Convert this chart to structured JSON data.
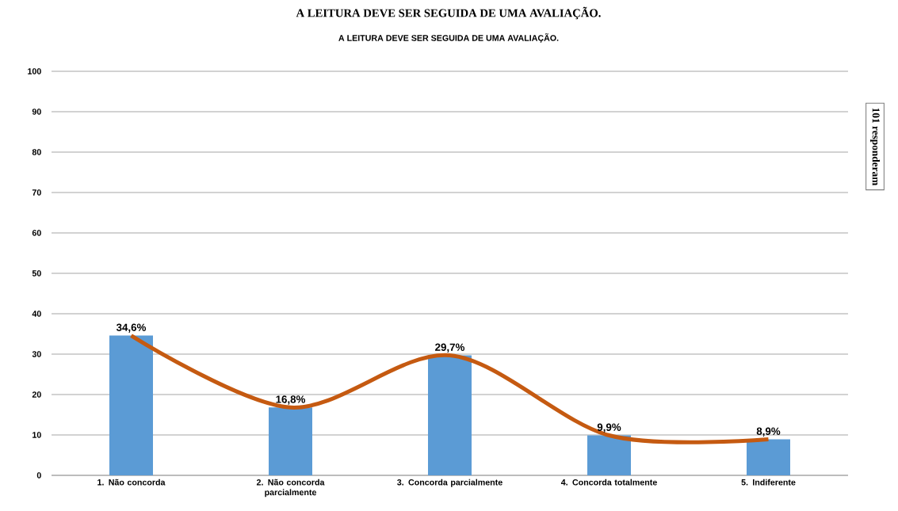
{
  "chart_data": {
    "type": "bar",
    "title": "A LEITURA DEVE SER SEGUIDA DE UMA AVALIAÇÃO.",
    "subtitle": "A LEITURA DEVE SER SEGUIDA DE UMA AVALIAÇÃO.",
    "categories": [
      "1. Não concorda",
      "2. Não concorda parcialmente",
      "3. Concorda parcialmente",
      "4. Concorda totalmente",
      "5. Indiferente"
    ],
    "series": [
      {
        "color": "#5b9bd5",
        "values": [
          34.6,
          16.8,
          29.7,
          9.9,
          8.9
        ],
        "value_labels": [
          "34,6%",
          "16,8%",
          "29,7%",
          "9,9%",
          "8,9%"
        ]
      },
      {
        "type": "line",
        "color": "#c55a11",
        "values": [
          34.6,
          16.8,
          29.7,
          9.9,
          8.9
        ]
      }
    ],
    "ylim": [
      0,
      100
    ],
    "yticks": [
      0,
      10,
      20,
      30,
      40,
      50,
      60,
      70,
      80,
      90,
      100
    ],
    "grid": "y",
    "marker": "none",
    "annotations": [
      "101 responderam"
    ]
  }
}
